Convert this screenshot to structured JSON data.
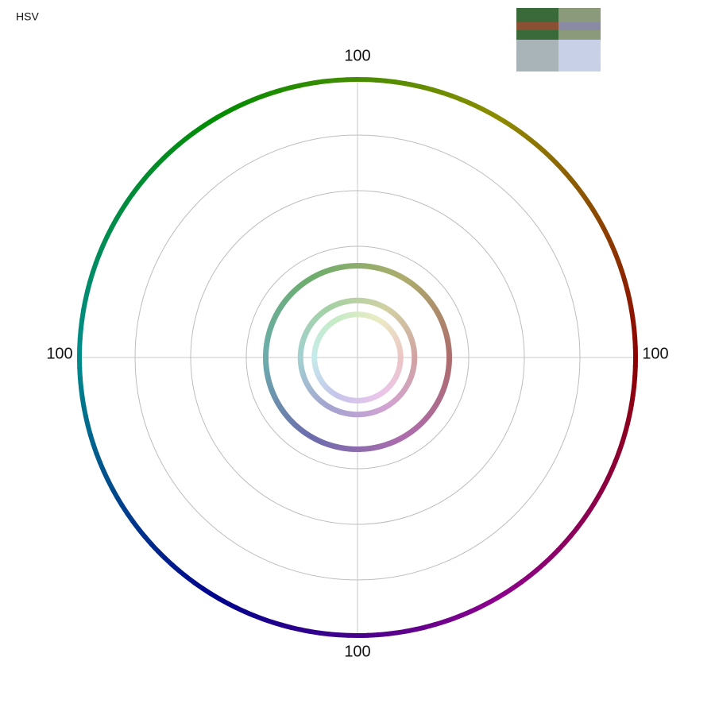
{
  "chart_data": {
    "type": "polar-hue-rings",
    "title": "HSV",
    "rlim": [
      0,
      100
    ],
    "rticks": [
      20,
      40,
      60,
      80,
      100
    ],
    "axis_labels": [
      100,
      100,
      100,
      100
    ],
    "grid": true,
    "rings": [
      {
        "r": 100,
        "saturation": 100,
        "brightness": 55
      },
      {
        "r": 33,
        "saturation": 38,
        "brightness": 68
      },
      {
        "r": 20.5,
        "saturation": 22,
        "brightness": 82
      },
      {
        "r": 15.5,
        "saturation": 16,
        "brightness": 92
      }
    ]
  }
}
